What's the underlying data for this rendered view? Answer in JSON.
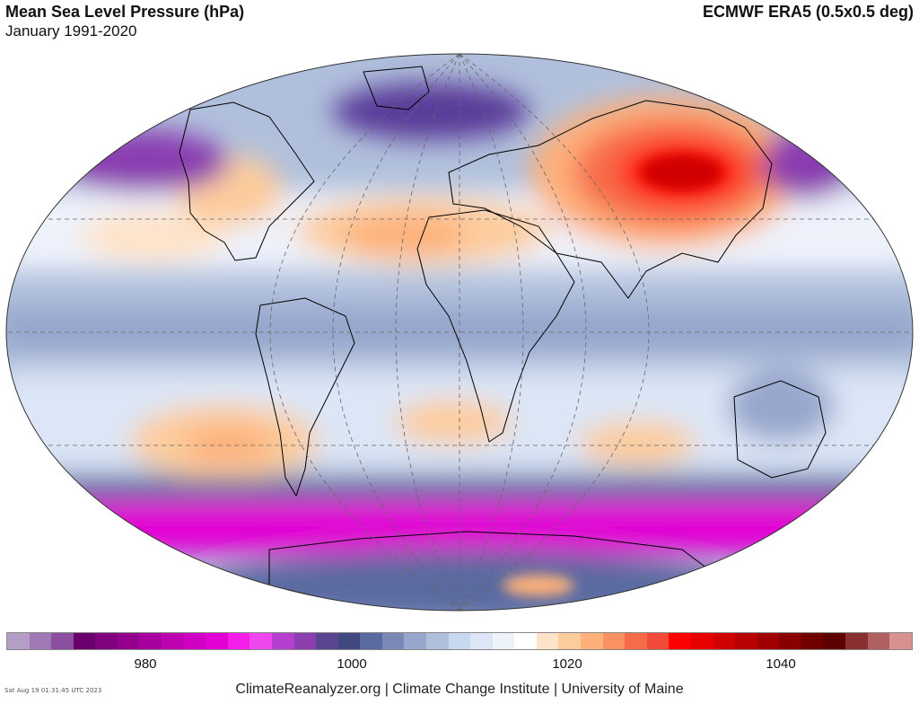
{
  "header": {
    "title": "Mean Sea Level Pressure (hPa)",
    "subtitle": "January 1991-2020",
    "dataset": "ECMWF ERA5 (0.5x0.5 deg)"
  },
  "colorbar": {
    "colors": [
      "#b49ec8",
      "#9f78b5",
      "#8c4fa0",
      "#6a006e",
      "#80007e",
      "#94008e",
      "#a8009e",
      "#bd00b0",
      "#cf00c2",
      "#e200d4",
      "#f41ee8",
      "#f046f0",
      "#b540d0",
      "#8a3eb0",
      "#5a4690",
      "#40497e",
      "#5a6aa0",
      "#7a88b8",
      "#96a6cc",
      "#b0c0dc",
      "#c8d8ee",
      "#dce6f6",
      "#eef2fb",
      "#ffffff",
      "#fee3c8",
      "#fdcc9c",
      "#fdb07a",
      "#fb9160",
      "#f76c48",
      "#f24a38",
      "#ff0000",
      "#e80000",
      "#d00000",
      "#b80000",
      "#a00000",
      "#880000",
      "#700000",
      "#5c0000",
      "#8a3030",
      "#b06060",
      "#d89090"
    ],
    "ticks": [
      {
        "label": "980"
      },
      {
        "label": "1000"
      },
      {
        "label": "1020"
      },
      {
        "label": "1040"
      }
    ]
  },
  "map": {
    "projection": "Winkel-Tripel style world map",
    "land_outline_color": "#000000",
    "graticule_color": "#666666",
    "features": [
      {
        "name": "siberian-high",
        "color": "#ff0000"
      },
      {
        "name": "siberian-high-outer",
        "color": "#f76c48"
      },
      {
        "name": "azores-high",
        "color": "#fdb07a"
      },
      {
        "name": "north-american-high",
        "color": "#fdcc9c"
      },
      {
        "name": "icelandic-low",
        "color": "#5a3a9a"
      },
      {
        "name": "aleutian-low",
        "color": "#8a3eb0"
      },
      {
        "name": "south-pacific-high",
        "color": "#fdb07a"
      },
      {
        "name": "south-atlantic-high",
        "color": "#fdcc9c"
      },
      {
        "name": "indian-ocean-high",
        "color": "#fdcc9c"
      },
      {
        "name": "southern-ocean-trough",
        "color": "#e200d4"
      },
      {
        "name": "antarctica",
        "color": "#5a6aa0"
      }
    ]
  },
  "footer": {
    "credit": "ClimateReanalyzer.org | Climate Change Institute | University of Maine",
    "timestamp": "Sat Aug 19 01:31:45 UTC 2023"
  }
}
